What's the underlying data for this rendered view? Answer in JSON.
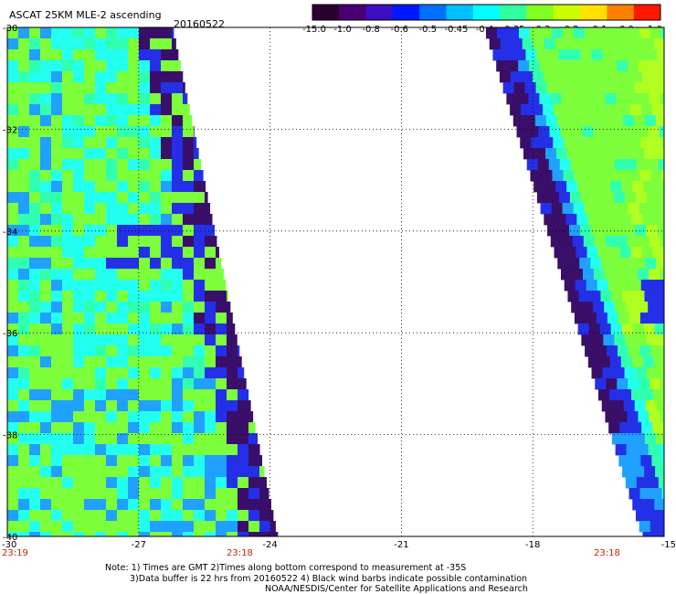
{
  "header": {
    "title": "ASCAT 25KM MLE-2 ascending",
    "date": "20160522"
  },
  "colorbar": {
    "labels": [
      "-15.0",
      "-1.0",
      "-0.8",
      "-0.6",
      "-0.5",
      "-0.45",
      "-0.4",
      "-0.35",
      "-0.3",
      "-0.2",
      "-0.1",
      "0.0",
      "1.0"
    ],
    "colors": [
      "#2a0030",
      "#4a0070",
      "#3a10c0",
      "#0018ff",
      "#0070ff",
      "#00c0ff",
      "#00ffff",
      "#30ffa0",
      "#80ff20",
      "#c8ff00",
      "#ffe000",
      "#ff8000",
      "#ff1800"
    ]
  },
  "map": {
    "lon_ticks": [
      "-30",
      "-27",
      "-24",
      "-21",
      "-18",
      "-15"
    ],
    "lat_ticks": [
      "-30",
      "-32",
      "-34",
      "-36",
      "-38",
      "-40"
    ],
    "lon_range": [
      -30,
      -15
    ],
    "lat_range": [
      -40,
      -30
    ],
    "grid_lons": [
      -27,
      -24,
      -21,
      -18
    ],
    "grid_lats": [
      -32,
      -34,
      -36,
      -38
    ],
    "palette": {
      "purple": "#3a0f6a",
      "blue": "#2430e8",
      "lightblue": "#20a0ff",
      "cyan": "#22ffee",
      "teal": "#30ffb0",
      "green": "#7cff3a",
      "yellowgreen": "#b0ff20"
    }
  },
  "times": {
    "left": "23:19",
    "middle": "23:18",
    "right": "23:18"
  },
  "notes": {
    "line1": "Note: 1) Times are GMT 2)Times along bottom correspond to measurement at -35S",
    "line2": "3)Data buffer is 22 hrs from 20160522 4) Black wind barbs indicate possible contamination",
    "line3": "NOAA/NESDIS/Center for Satellite Applications and Research"
  }
}
